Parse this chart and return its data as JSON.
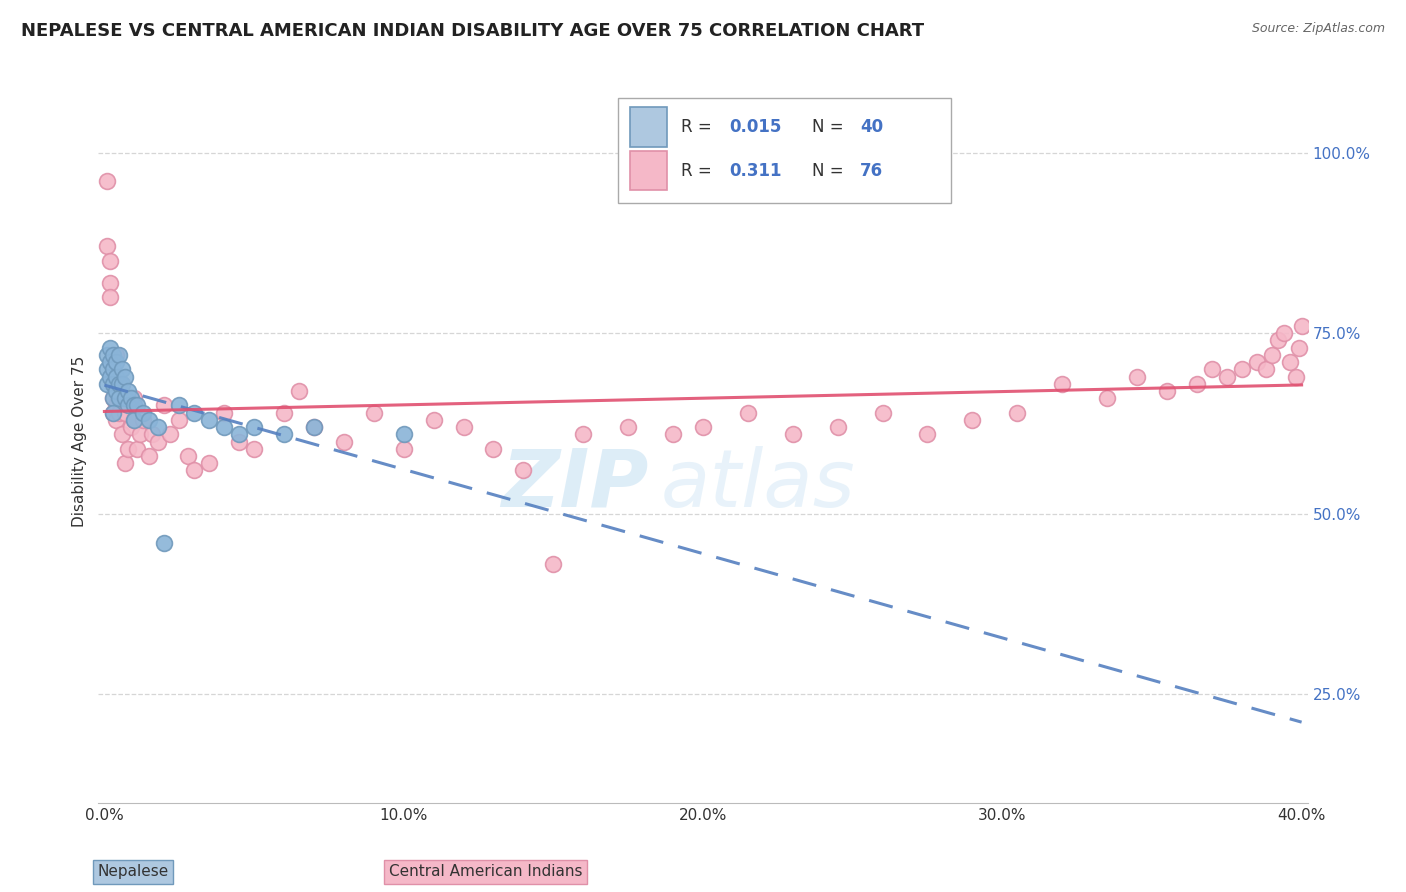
{
  "title": "NEPALESE VS CENTRAL AMERICAN INDIAN DISABILITY AGE OVER 75 CORRELATION CHART",
  "source": "Source: ZipAtlas.com",
  "ylabel": "Disability Age Over 75",
  "xlim": [
    -0.002,
    0.402
  ],
  "ylim": [
    0.1,
    1.1
  ],
  "xticks": [
    0.0,
    0.1,
    0.2,
    0.3,
    0.4
  ],
  "xtick_labels": [
    "0.0%",
    "10.0%",
    "20.0%",
    "30.0%",
    "40.0%"
  ],
  "yticks_right": [
    0.25,
    0.5,
    0.75,
    1.0
  ],
  "ytick_labels_right": [
    "25.0%",
    "50.0%",
    "75.0%",
    "100.0%"
  ],
  "nepalese_color": "#8ab4d8",
  "nepalese_edge": "#7099bb",
  "central_american_color": "#f5b8c8",
  "central_american_edge": "#e090a8",
  "regression_blue": "#5580c0",
  "regression_pink": "#e05070",
  "nepalese_R": 0.015,
  "nepalese_N": 40,
  "central_american_R": 0.311,
  "central_american_N": 76,
  "background_color": "#ffffff",
  "grid_color": "#cccccc",
  "title_fontsize": 13,
  "nepalese_x": [
    0.001,
    0.001,
    0.001,
    0.002,
    0.002,
    0.002,
    0.003,
    0.003,
    0.003,
    0.003,
    0.003,
    0.004,
    0.004,
    0.004,
    0.005,
    0.005,
    0.005,
    0.006,
    0.006,
    0.007,
    0.007,
    0.008,
    0.008,
    0.009,
    0.01,
    0.01,
    0.011,
    0.013,
    0.015,
    0.018,
    0.02,
    0.025,
    0.03,
    0.035,
    0.04,
    0.045,
    0.05,
    0.06,
    0.07,
    0.1
  ],
  "nepalese_y": [
    0.72,
    0.7,
    0.68,
    0.73,
    0.69,
    0.71,
    0.72,
    0.7,
    0.68,
    0.66,
    0.64,
    0.71,
    0.69,
    0.67,
    0.72,
    0.68,
    0.66,
    0.7,
    0.68,
    0.69,
    0.66,
    0.67,
    0.65,
    0.66,
    0.65,
    0.63,
    0.65,
    0.64,
    0.63,
    0.62,
    0.46,
    0.65,
    0.64,
    0.63,
    0.62,
    0.61,
    0.62,
    0.61,
    0.62,
    0.61
  ],
  "central_american_x": [
    0.001,
    0.001,
    0.002,
    0.002,
    0.002,
    0.003,
    0.003,
    0.003,
    0.004,
    0.004,
    0.004,
    0.005,
    0.005,
    0.006,
    0.006,
    0.007,
    0.007,
    0.008,
    0.008,
    0.009,
    0.01,
    0.01,
    0.011,
    0.012,
    0.013,
    0.015,
    0.016,
    0.018,
    0.02,
    0.022,
    0.025,
    0.028,
    0.03,
    0.035,
    0.04,
    0.045,
    0.05,
    0.06,
    0.065,
    0.07,
    0.08,
    0.09,
    0.1,
    0.11,
    0.12,
    0.13,
    0.14,
    0.15,
    0.16,
    0.175,
    0.19,
    0.2,
    0.215,
    0.23,
    0.245,
    0.26,
    0.275,
    0.29,
    0.305,
    0.32,
    0.335,
    0.345,
    0.355,
    0.365,
    0.37,
    0.375,
    0.38,
    0.385,
    0.388,
    0.39,
    0.392,
    0.394,
    0.396,
    0.398,
    0.399,
    0.4
  ],
  "central_american_y": [
    0.87,
    0.96,
    0.85,
    0.82,
    0.8,
    0.68,
    0.66,
    0.64,
    0.72,
    0.65,
    0.63,
    0.68,
    0.64,
    0.68,
    0.61,
    0.64,
    0.57,
    0.66,
    0.59,
    0.62,
    0.66,
    0.63,
    0.59,
    0.61,
    0.63,
    0.58,
    0.61,
    0.6,
    0.65,
    0.61,
    0.63,
    0.58,
    0.56,
    0.57,
    0.64,
    0.6,
    0.59,
    0.64,
    0.67,
    0.62,
    0.6,
    0.64,
    0.59,
    0.63,
    0.62,
    0.59,
    0.56,
    0.43,
    0.61,
    0.62,
    0.61,
    0.62,
    0.64,
    0.61,
    0.62,
    0.64,
    0.61,
    0.63,
    0.64,
    0.68,
    0.66,
    0.69,
    0.67,
    0.68,
    0.7,
    0.69,
    0.7,
    0.71,
    0.7,
    0.72,
    0.74,
    0.75,
    0.71,
    0.69,
    0.73,
    0.76
  ]
}
